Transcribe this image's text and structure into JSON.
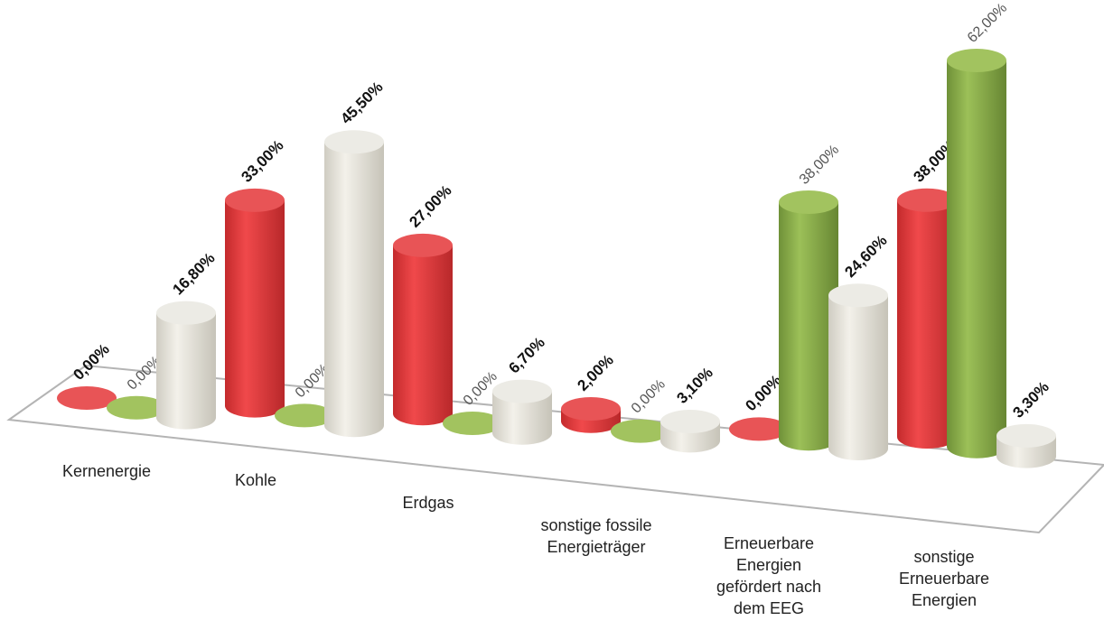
{
  "chart_data": {
    "type": "bar",
    "categories": [
      "Kernenergie",
      "Kohle",
      "Erdgas",
      "sonstige fossile Energieträger",
      "Erneuerbare Energien gefördert nach dem EEG",
      "sonstige Erneuerbare Energien"
    ],
    "series": [
      {
        "color": "#e03a3c",
        "values": [
          0.0,
          33.0,
          27.0,
          2.0,
          0.0,
          38.0
        ],
        "labels": [
          "0,00%",
          "33,00%",
          "27,00%",
          "2,00%",
          "0,00%",
          "38,00%"
        ],
        "label_style": "bold"
      },
      {
        "color": "#8aae4c",
        "values": [
          0.0,
          0.0,
          0.0,
          0.0,
          38.0,
          62.0
        ],
        "labels": [
          "0,00%",
          "0,00%",
          "0,00%",
          "0,00%",
          "38,00%",
          "62,00%"
        ],
        "label_style": "light"
      },
      {
        "color": "#e6e3d9",
        "values": [
          16.8,
          45.5,
          6.7,
          3.1,
          24.6,
          3.3
        ],
        "labels": [
          "16,80%",
          "45,50%",
          "6,70%",
          "3,10%",
          "24,60%",
          "3,30%"
        ],
        "label_style": "bold"
      }
    ],
    "value_unit": "%",
    "style": "3d-cylinder",
    "grid": false,
    "legend": "none"
  },
  "labels": {
    "cat0": "Kernenergie",
    "cat1": "Kohle",
    "cat2": "Erdgas",
    "cat3a": "sonstige fossile",
    "cat3b": "Energieträger",
    "cat4a": "Erneuerbare",
    "cat4b": "Energien",
    "cat4c": "gefördert nach",
    "cat4d": "dem EEG",
    "cat5a": "sonstige",
    "cat5b": "Erneuerbare",
    "cat5c": "Energien"
  }
}
